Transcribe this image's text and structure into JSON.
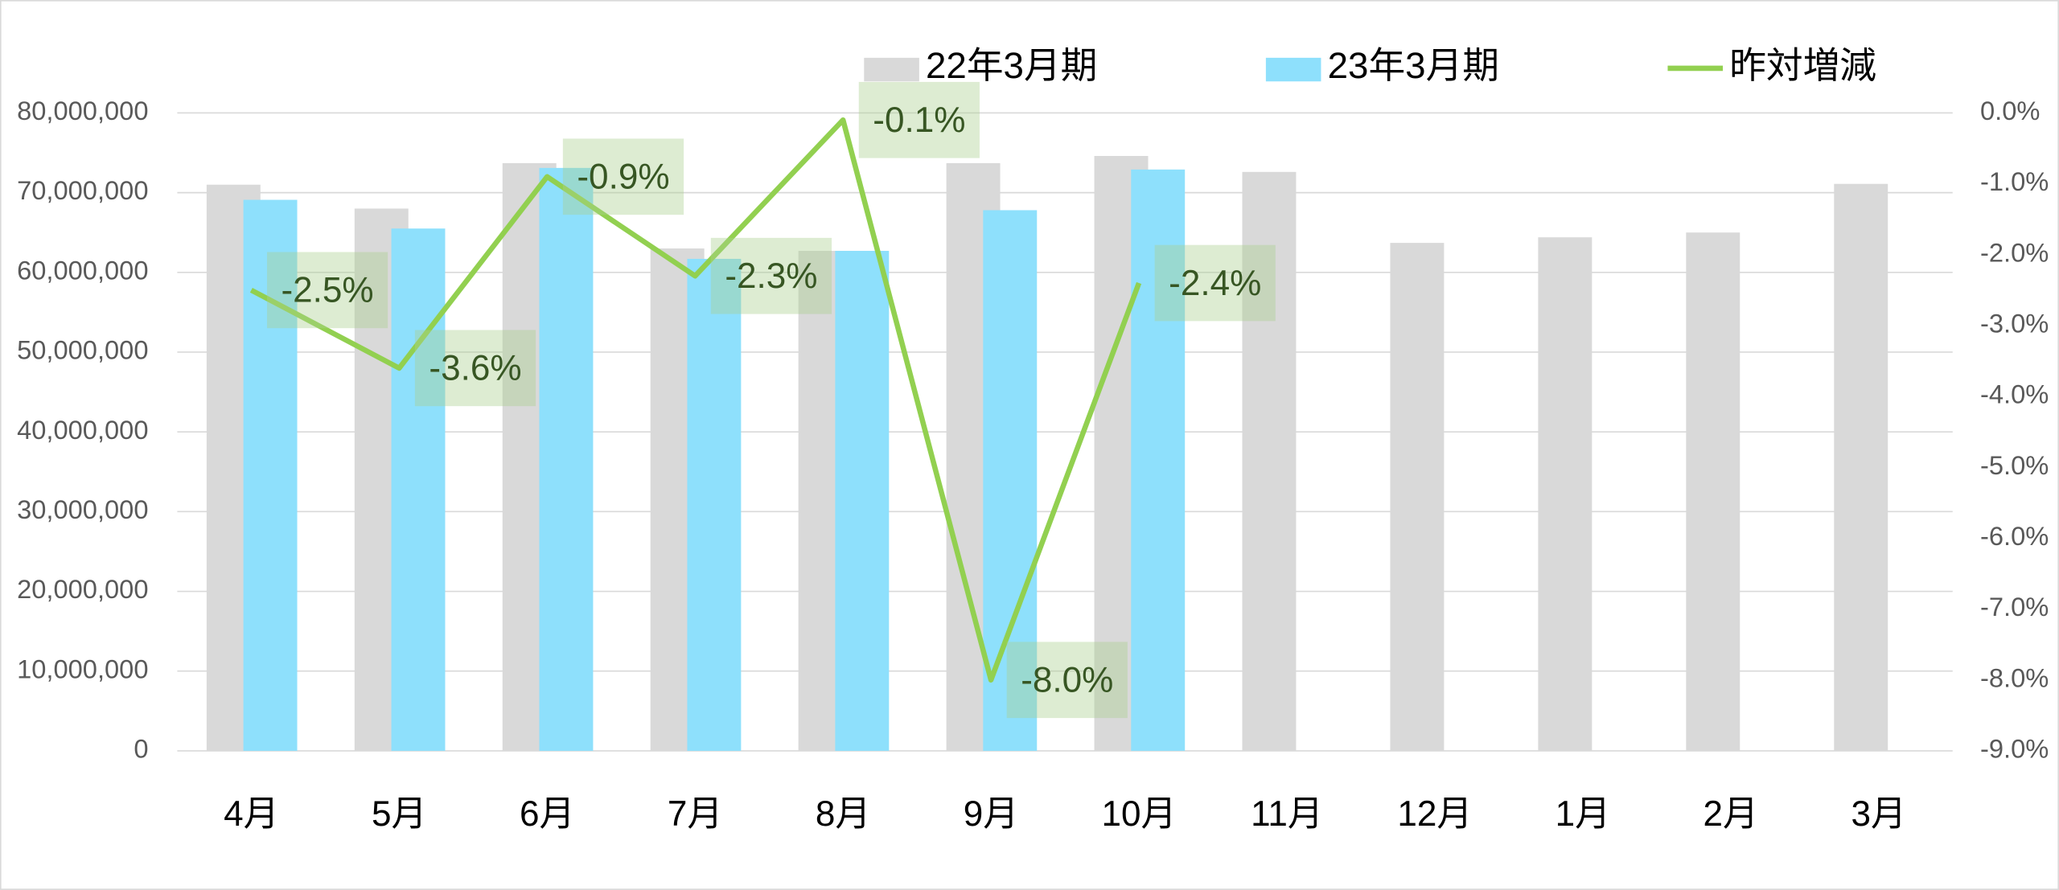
{
  "chart_data": {
    "type": "bar_line",
    "categories": [
      "4月",
      "5月",
      "6月",
      "7月",
      "8月",
      "9月",
      "10月",
      "11月",
      "12月",
      "1月",
      "2月",
      "3月"
    ],
    "series": [
      {
        "name": "22年3月期",
        "color": "#d9d9d9",
        "type": "bar",
        "values": [
          71000000,
          68000000,
          73700000,
          63000000,
          62700000,
          73700000,
          74600000,
          72600000,
          63700000,
          64400000,
          65000000,
          71100000
        ]
      },
      {
        "name": "23年3月期",
        "color": "#8ee0fc",
        "type": "bar",
        "values": [
          69100000,
          65500000,
          73100000,
          61700000,
          62700000,
          67800000,
          72900000,
          null,
          null,
          null,
          null,
          null
        ]
      },
      {
        "name": "昨対増減",
        "color": "#92d050",
        "type": "line",
        "axis": "y2",
        "values": [
          -2.5,
          -3.6,
          -0.9,
          -2.3,
          -0.1,
          -8.0,
          -2.4,
          null,
          null,
          null,
          null,
          null
        ],
        "value_labels": [
          "-2.5%",
          "-3.6%",
          "-0.9%",
          "-2.3%",
          "-0.1%",
          "-8.0%",
          "-2.4%",
          null,
          null,
          null,
          null,
          null
        ]
      }
    ],
    "ylim": [
      0,
      80000000
    ],
    "yticks": [
      0,
      {
        "value": 10000000,
        "label": "10,000,000"
      },
      {
        "value": 20000000,
        "label": "20,000,000"
      },
      {
        "value": 30000000,
        "label": "30,000,000"
      },
      {
        "value": 40000000,
        "label": "40,000,000"
      },
      {
        "value": 50000000,
        "label": "50,000,000"
      },
      {
        "value": 60000000,
        "label": "60,000,000"
      },
      {
        "value": 70000000,
        "label": "70,000,000"
      },
      {
        "value": 80000000,
        "label": "80,000,000"
      }
    ],
    "y2lim": [
      -9,
      0
    ],
    "y2ticks": [
      {
        "value": 0,
        "label": "0.0%"
      },
      {
        "value": -1,
        "label": "-1.0%"
      },
      {
        "value": -2,
        "label": "-2.0%"
      },
      {
        "value": -3,
        "label": "-3.0%"
      },
      {
        "value": -4,
        "label": "-4.0%"
      },
      {
        "value": -5,
        "label": "-5.0%"
      },
      {
        "value": -6,
        "label": "-6.0%"
      },
      {
        "value": -7,
        "label": "-7.0%"
      },
      {
        "value": -8,
        "label": "-8.0%"
      },
      {
        "value": -9,
        "label": "-9.0%"
      }
    ],
    "grid": true,
    "legend": "top"
  }
}
